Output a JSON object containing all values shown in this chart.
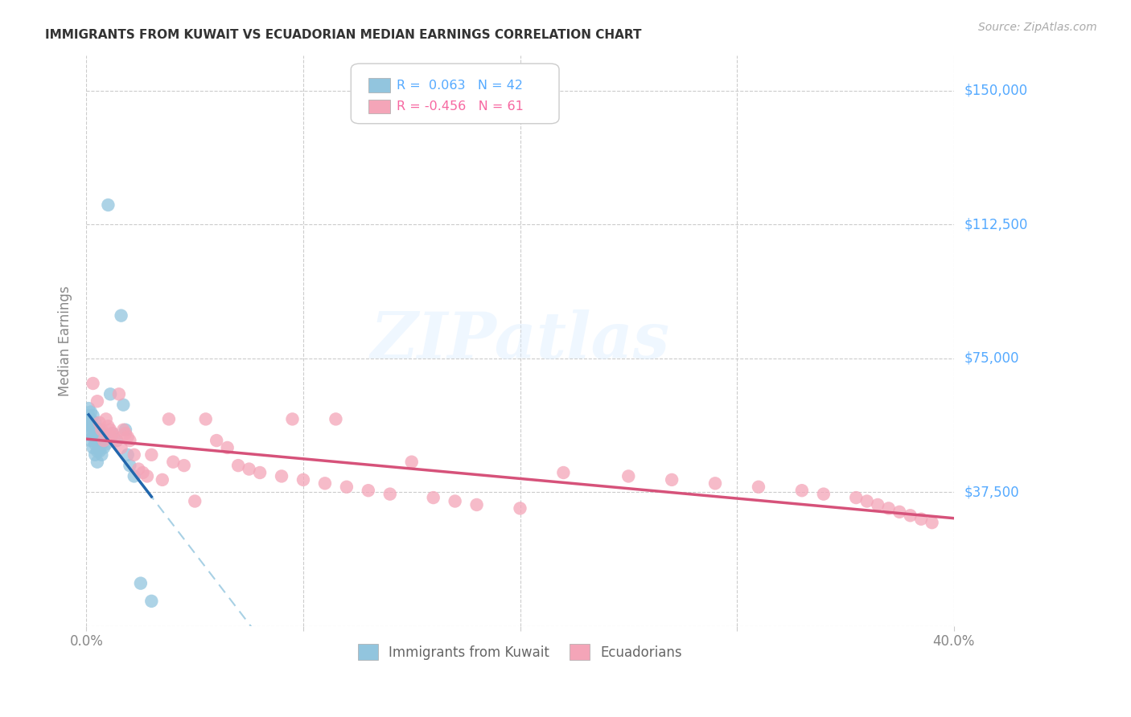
{
  "title": "IMMIGRANTS FROM KUWAIT VS ECUADORIAN MEDIAN EARNINGS CORRELATION CHART",
  "source": "Source: ZipAtlas.com",
  "ylabel": "Median Earnings",
  "y_ticks": [
    0,
    37500,
    75000,
    112500,
    150000
  ],
  "y_tick_labels": [
    "",
    "$37,500",
    "$75,000",
    "$112,500",
    "$150,000"
  ],
  "x_min": 0.0,
  "x_max": 0.4,
  "y_min": 0,
  "y_max": 160000,
  "blue_color": "#92c5de",
  "pink_color": "#f4a5b8",
  "blue_line_color": "#2166ac",
  "pink_line_color": "#d6527a",
  "blue_dash_color": "#92c5de",
  "watermark_text": "ZIPatlas",
  "legend_label_blue": "Immigrants from Kuwait",
  "legend_label_pink": "Ecuadorians",
  "blue_points_x": [
    0.001,
    0.001,
    0.001,
    0.001,
    0.002,
    0.002,
    0.002,
    0.002,
    0.002,
    0.003,
    0.003,
    0.003,
    0.003,
    0.004,
    0.004,
    0.004,
    0.004,
    0.005,
    0.005,
    0.005,
    0.005,
    0.006,
    0.006,
    0.006,
    0.007,
    0.007,
    0.007,
    0.008,
    0.008,
    0.009,
    0.01,
    0.011,
    0.012,
    0.014,
    0.016,
    0.017,
    0.018,
    0.019,
    0.02,
    0.022,
    0.025,
    0.03
  ],
  "blue_points_y": [
    55000,
    57000,
    59000,
    61000,
    52000,
    54000,
    56000,
    58000,
    60000,
    50000,
    53000,
    56000,
    59000,
    48000,
    51000,
    54000,
    57000,
    46000,
    49000,
    52000,
    55000,
    49000,
    52000,
    55000,
    48000,
    51000,
    54000,
    50000,
    53000,
    51000,
    118000,
    65000,
    54000,
    52000,
    87000,
    62000,
    55000,
    48000,
    45000,
    42000,
    12000,
    7000
  ],
  "pink_points_x": [
    0.003,
    0.005,
    0.006,
    0.007,
    0.008,
    0.009,
    0.01,
    0.011,
    0.012,
    0.013,
    0.014,
    0.015,
    0.016,
    0.017,
    0.018,
    0.019,
    0.02,
    0.022,
    0.024,
    0.026,
    0.028,
    0.03,
    0.035,
    0.038,
    0.04,
    0.045,
    0.05,
    0.055,
    0.06,
    0.065,
    0.07,
    0.075,
    0.08,
    0.09,
    0.095,
    0.1,
    0.11,
    0.115,
    0.12,
    0.13,
    0.14,
    0.15,
    0.16,
    0.17,
    0.18,
    0.2,
    0.22,
    0.25,
    0.27,
    0.29,
    0.31,
    0.33,
    0.34,
    0.355,
    0.36,
    0.365,
    0.37,
    0.375,
    0.38,
    0.385,
    0.39
  ],
  "pink_points_y": [
    68000,
    63000,
    57000,
    55000,
    52000,
    58000,
    56000,
    55000,
    54000,
    53000,
    52000,
    65000,
    50000,
    55000,
    54000,
    53000,
    52000,
    48000,
    44000,
    43000,
    42000,
    48000,
    41000,
    58000,
    46000,
    45000,
    35000,
    58000,
    52000,
    50000,
    45000,
    44000,
    43000,
    42000,
    58000,
    41000,
    40000,
    58000,
    39000,
    38000,
    37000,
    46000,
    36000,
    35000,
    34000,
    33000,
    43000,
    42000,
    41000,
    40000,
    39000,
    38000,
    37000,
    36000,
    35000,
    34000,
    33000,
    32000,
    31000,
    30000,
    29000
  ]
}
